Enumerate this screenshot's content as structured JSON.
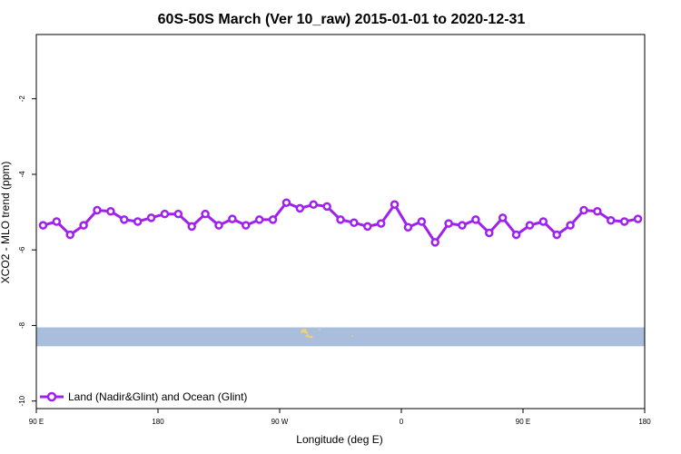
{
  "chart_data": {
    "type": "line",
    "title": "60S-50S March (Ver 10_raw)   2015-01-01 to 2020-12-31",
    "xlabel": "Longitude (deg E)",
    "ylabel": "XCO2 - MLO trend (ppm)",
    "x_ticks": [
      {
        "value": 90,
        "label": "90 E"
      },
      {
        "value": 180,
        "label": "180"
      },
      {
        "value": 270,
        "label": "90 W"
      },
      {
        "value": 360,
        "label": "0"
      },
      {
        "value": 450,
        "label": "90 E"
      },
      {
        "value": 540,
        "label": "180"
      }
    ],
    "y_ticks": [
      {
        "value": -2,
        "label": "-2"
      },
      {
        "value": -4,
        "label": "-4"
      },
      {
        "value": -6,
        "label": "-6"
      },
      {
        "value": -8,
        "label": "-8"
      },
      {
        "value": -10,
        "label": "-10"
      }
    ],
    "xlim": [
      90,
      540
    ],
    "ylim": [
      -10.2,
      -0.3
    ],
    "grid": false,
    "legend_position": "bottom-left",
    "series": [
      {
        "name": "Land (Nadir&Glint) and Ocean (Glint)",
        "color": "#a020f0",
        "marker_fill": "#ffffff",
        "x": [
          95,
          105,
          115,
          125,
          135,
          145,
          155,
          165,
          175,
          185,
          195,
          205,
          215,
          225,
          235,
          245,
          255,
          265,
          275,
          285,
          295,
          305,
          315,
          325,
          335,
          345,
          355,
          365,
          375,
          385,
          395,
          405,
          415,
          425,
          435,
          445,
          455,
          465,
          475,
          485,
          495,
          505,
          515,
          525,
          535
        ],
        "y": [
          -5.35,
          -5.25,
          -5.6,
          -5.35,
          -4.95,
          -4.98,
          -5.2,
          -5.25,
          -5.15,
          -5.05,
          -5.05,
          -5.38,
          -5.05,
          -5.35,
          -5.18,
          -5.35,
          -5.2,
          -5.2,
          -4.75,
          -4.9,
          -4.8,
          -4.85,
          -5.2,
          -5.28,
          -5.38,
          -5.3,
          -4.8,
          -5.4,
          -5.25,
          -5.8,
          -5.3,
          -5.35,
          -5.2,
          -5.55,
          -5.15,
          -5.6,
          -5.35,
          -5.25,
          -5.6,
          -5.35,
          -4.95,
          -4.98,
          -5.22,
          -5.25,
          -5.18
        ]
      }
    ],
    "land_strip": {
      "y_range": [
        -8.55,
        -8.05
      ],
      "ocean_color": "#a8bedc",
      "land_color": "#f0d070"
    }
  }
}
